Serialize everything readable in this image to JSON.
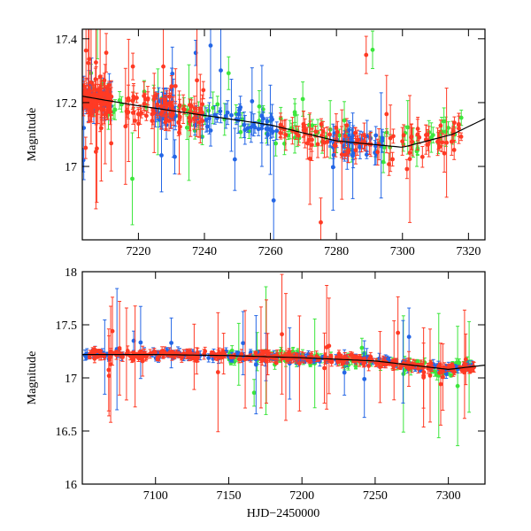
{
  "chart_data": [
    {
      "type": "scatter",
      "panel": "top",
      "title": "",
      "xlabel": "",
      "ylabel": "Magnitude",
      "xlim": [
        7203,
        7325
      ],
      "ylim": [
        17.43,
        16.77
      ],
      "x_ticks": [
        7220,
        7240,
        7260,
        7280,
        7300,
        7320
      ],
      "y_ticks": [
        17,
        17.2,
        17.4
      ],
      "model_curve": {
        "name": "model",
        "color": "#000000",
        "x": [
          7203,
          7220,
          7240,
          7260,
          7280,
          7300,
          7315,
          7325
        ],
        "y": [
          17.22,
          17.19,
          17.16,
          17.13,
          17.08,
          17.06,
          17.1,
          17.15
        ]
      },
      "series": [
        {
          "name": "blue",
          "color": "#2466e6",
          "segments": [
            [
              7203,
              7212
            ],
            [
              7225,
              7232
            ],
            [
              7237,
              7262
            ],
            [
              7278,
              7294
            ]
          ],
          "base_spread": 0.03
        },
        {
          "name": "green",
          "color": "#3ce63c",
          "segments": [
            [
              7203,
              7318
            ]
          ],
          "base_spread": 0.04
        },
        {
          "name": "red",
          "color": "#ff3a24",
          "segments": [
            [
              7203,
              7212
            ],
            [
              7216,
              7240
            ],
            [
              7262,
              7318
            ]
          ],
          "base_spread": 0.03
        }
      ]
    },
    {
      "type": "scatter",
      "panel": "bottom",
      "title": "",
      "xlabel": "HJD−2450000",
      "ylabel": "Magnitude",
      "xlim": [
        7050,
        7325
      ],
      "ylim": [
        18,
        16
      ],
      "x_ticks": [
        7100,
        7150,
        7200,
        7250,
        7300
      ],
      "y_ticks": [
        16,
        16.5,
        17,
        17.5,
        18
      ],
      "model_curve": {
        "name": "model",
        "color": "#000000",
        "x": [
          7050,
          7100,
          7150,
          7200,
          7250,
          7300,
          7325
        ],
        "y": [
          17.22,
          17.22,
          17.21,
          17.19,
          17.16,
          17.08,
          17.12
        ]
      },
      "series": [
        {
          "name": "blue",
          "color": "#2466e6",
          "segments": [
            [
              7050,
              7318
            ]
          ],
          "base_spread": 0.03
        },
        {
          "name": "green",
          "color": "#3ce63c",
          "segments": [
            [
              7150,
              7318
            ]
          ],
          "base_spread": 0.04
        },
        {
          "name": "red",
          "color": "#ff3a24",
          "segments": [
            [
              7055,
              7318
            ]
          ],
          "base_spread": 0.03
        }
      ]
    }
  ]
}
